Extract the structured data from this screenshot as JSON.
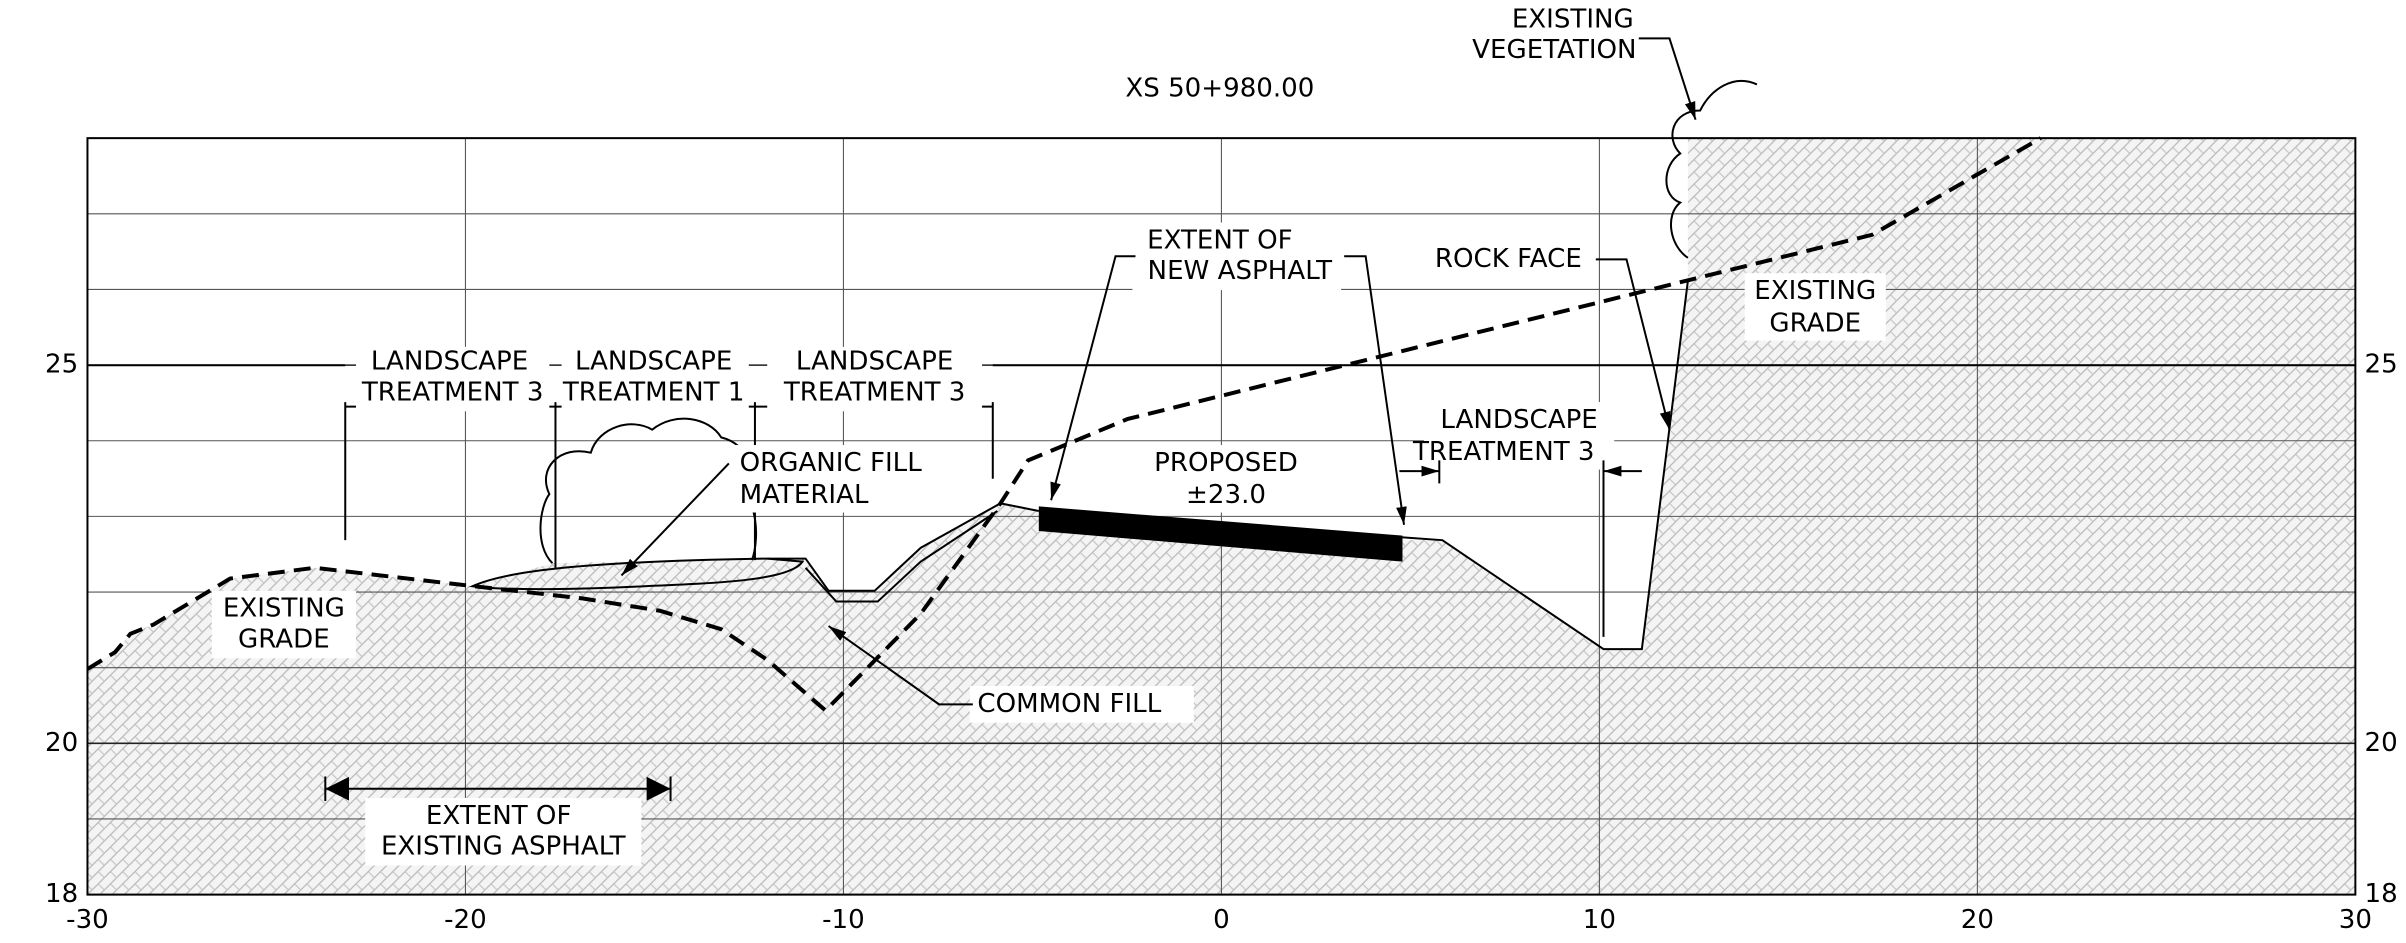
{
  "title": "XS 50+980.00",
  "axes": {
    "xlim": [
      -30,
      30
    ],
    "ylim": [
      18,
      28
    ],
    "xticks": [
      -30,
      -20,
      -10,
      0,
      10,
      20,
      30
    ],
    "yticks": [
      18,
      20,
      25
    ],
    "ygrid": [
      18,
      19,
      20,
      21,
      22,
      23,
      24,
      25,
      26,
      27,
      28
    ]
  },
  "labels": {
    "existing_vegetation": [
      "EXISTING",
      "VEGETATION"
    ],
    "landscape_treatment_3_left": [
      "LANDSCAPE",
      "TREATMENT 3"
    ],
    "landscape_treatment_1": [
      "LANDSCAPE",
      "TREATMENT 1"
    ],
    "landscape_treatment_3_mid": [
      "LANDSCAPE",
      "TREATMENT 3"
    ],
    "organic_fill": [
      "ORGANIC FILL",
      "MATERIAL"
    ],
    "existing_grade_left": [
      "EXISTING",
      "GRADE"
    ],
    "common_fill": [
      "COMMON FILL"
    ],
    "extent_new_asphalt": [
      "EXTENT OF",
      "NEW ASPHALT"
    ],
    "proposed": [
      "PROPOSED",
      "±23.0"
    ],
    "rock_face": [
      "ROCK FACE"
    ],
    "existing_grade_right": [
      "EXISTING",
      "GRADE"
    ],
    "landscape_treatment_3_right": [
      "LANDSCAPE",
      "TREATMENT 3"
    ],
    "extent_existing_asphalt": [
      "EXTENT OF",
      "EXISTING ASPHALT"
    ]
  }
}
